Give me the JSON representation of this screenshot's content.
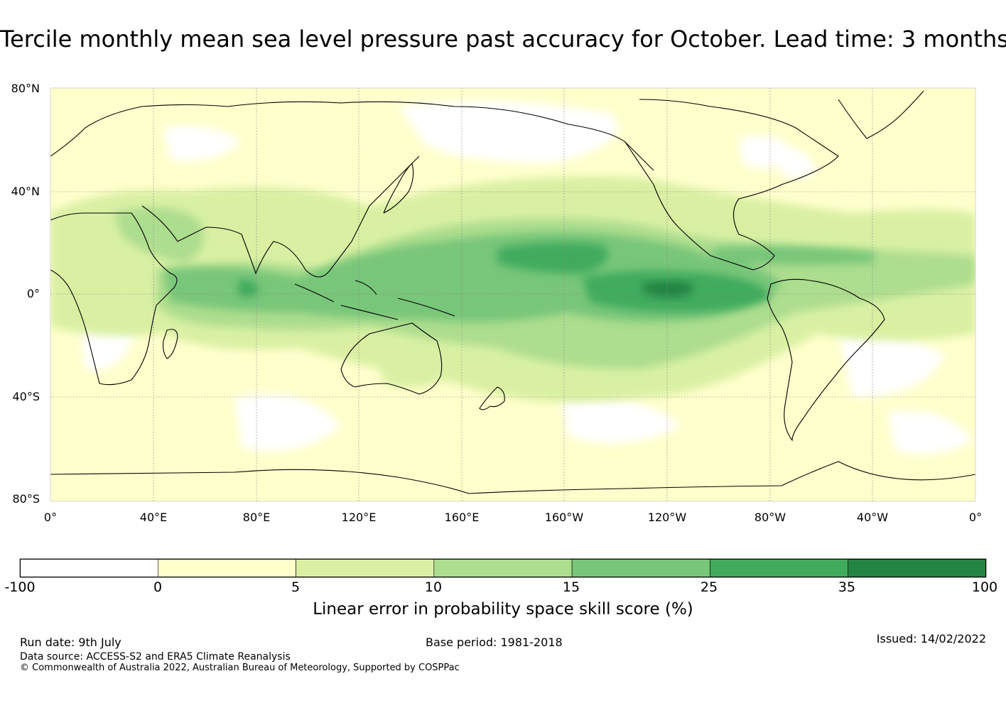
{
  "title": "Tercile monthly mean sea level pressure past accuracy for October. Lead time: 3 months",
  "map": {
    "lat_labels": [
      "80°N",
      "40°N",
      "0°",
      "40°S",
      "80°S"
    ],
    "lon_labels": [
      "0°",
      "40°E",
      "80°E",
      "120°E",
      "160°E",
      "160°W",
      "120°W",
      "80°W",
      "40°W",
      "0°"
    ],
    "land_color": "#000000",
    "grid_color": "#888888"
  },
  "colorbar": {
    "title": "Linear error in probability space skill score (%)",
    "ticks": [
      "-100",
      "0",
      "5",
      "10",
      "15",
      "25",
      "35",
      "100"
    ],
    "colors": [
      "#ffffff",
      "#ffffcc",
      "#d9f0a3",
      "#addd8e",
      "#78c679",
      "#41ab5d",
      "#238443"
    ]
  },
  "footer": {
    "run_date": "Run date: 9th July",
    "base_period": "Base period: 1981-2018",
    "issued": "Issued: 14/02/2022",
    "data_source": "Data source: ACCESS-S2 and ERA5 Climate Reanalysis",
    "copyright": "© Commonwealth of Australia 2022, Australian Bureau of Meteorology, Supported by COSPPac"
  }
}
